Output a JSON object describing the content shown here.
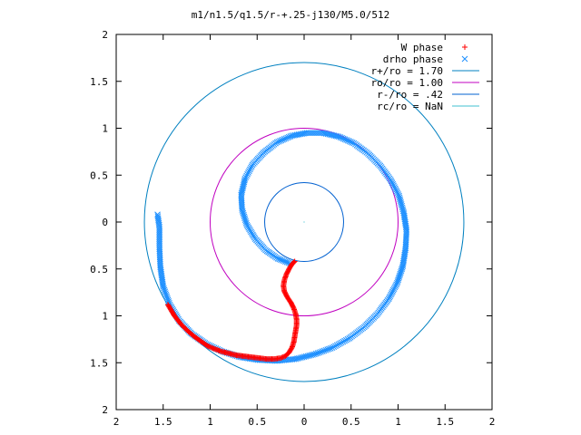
{
  "chart_data": {
    "type": "scatter",
    "title": "m1/n1.5/q1.5/r-+.25-j130/M5.0/512",
    "xlim": [
      -2,
      2
    ],
    "ylim": [
      -2,
      2
    ],
    "x_tick_labels": [
      "2",
      "1.5",
      "1",
      "0.5",
      "0",
      "0.5",
      "1",
      "1.5",
      "2"
    ],
    "y_tick_labels": [
      "2",
      "1.5",
      "1",
      "0.5",
      "0",
      "0.5",
      "1",
      "1.5",
      "2"
    ],
    "grid": false,
    "legend_position": "top-right",
    "series": [
      {
        "name": "W phase",
        "kind": "points",
        "marker": "+",
        "color": "#ff0000",
        "points": [
          [
            -0.1,
            -0.42
          ],
          [
            -0.13,
            -0.45
          ],
          [
            -0.16,
            -0.5
          ],
          [
            -0.19,
            -0.56
          ],
          [
            -0.21,
            -0.62
          ],
          [
            -0.22,
            -0.68
          ],
          [
            -0.21,
            -0.74
          ],
          [
            -0.18,
            -0.8
          ],
          [
            -0.14,
            -0.86
          ],
          [
            -0.11,
            -0.92
          ],
          [
            -0.09,
            -0.98
          ],
          [
            -0.08,
            -1.04
          ],
          [
            -0.08,
            -1.1
          ],
          [
            -0.09,
            -1.16
          ],
          [
            -0.1,
            -1.22
          ],
          [
            -0.11,
            -1.28
          ],
          [
            -0.13,
            -1.34
          ],
          [
            -0.16,
            -1.39
          ],
          [
            -0.2,
            -1.43
          ],
          [
            -0.25,
            -1.45
          ],
          [
            -0.32,
            -1.46
          ],
          [
            -0.4,
            -1.46
          ],
          [
            -0.48,
            -1.45
          ],
          [
            -0.56,
            -1.44
          ],
          [
            -0.64,
            -1.43
          ],
          [
            -0.72,
            -1.42
          ],
          [
            -0.8,
            -1.4
          ],
          [
            -0.88,
            -1.38
          ],
          [
            -0.96,
            -1.35
          ],
          [
            -1.03,
            -1.32
          ],
          [
            -1.1,
            -1.27
          ],
          [
            -1.17,
            -1.22
          ],
          [
            -1.24,
            -1.16
          ],
          [
            -1.31,
            -1.09
          ],
          [
            -1.38,
            -1.0
          ],
          [
            -1.45,
            -0.88
          ]
        ]
      },
      {
        "name": "drho phase",
        "kind": "points",
        "marker": "x",
        "color": "#1e90ff",
        "points": [
          [
            -0.15,
            -0.44
          ],
          [
            -0.28,
            -0.39
          ],
          [
            -0.41,
            -0.3
          ],
          [
            -0.52,
            -0.18
          ],
          [
            -0.61,
            -0.03
          ],
          [
            -0.66,
            0.13
          ],
          [
            -0.67,
            0.29
          ],
          [
            -0.63,
            0.46
          ],
          [
            -0.55,
            0.61
          ],
          [
            -0.43,
            0.74
          ],
          [
            -0.29,
            0.85
          ],
          [
            -0.13,
            0.92
          ],
          [
            0.03,
            0.95
          ],
          [
            0.2,
            0.95
          ],
          [
            0.37,
            0.91
          ],
          [
            0.53,
            0.84
          ],
          [
            0.68,
            0.73
          ],
          [
            0.81,
            0.6
          ],
          [
            0.92,
            0.45
          ],
          [
            1.01,
            0.28
          ],
          [
            1.06,
            0.1
          ],
          [
            1.09,
            -0.09
          ],
          [
            1.08,
            -0.28
          ],
          [
            1.05,
            -0.47
          ],
          [
            0.99,
            -0.65
          ],
          [
            0.9,
            -0.82
          ],
          [
            0.78,
            -0.98
          ],
          [
            0.64,
            -1.12
          ],
          [
            0.48,
            -1.24
          ],
          [
            0.3,
            -1.34
          ],
          [
            0.11,
            -1.41
          ],
          [
            -0.09,
            -1.46
          ],
          [
            -0.29,
            -1.48
          ],
          [
            -0.49,
            -1.47
          ],
          [
            -0.68,
            -1.44
          ],
          [
            -0.87,
            -1.38
          ],
          [
            -1.04,
            -1.3
          ],
          [
            -1.2,
            -1.19
          ],
          [
            -1.33,
            -1.05
          ],
          [
            -1.43,
            -0.88
          ],
          [
            -1.5,
            -0.69
          ],
          [
            -1.53,
            -0.48
          ],
          [
            -1.54,
            -0.27
          ],
          [
            -1.54,
            -0.05
          ],
          [
            -1.56,
            0.08
          ]
        ]
      },
      {
        "name": "r+/ro = 1.70",
        "kind": "circle",
        "radius": 1.7,
        "color": "#0080c0"
      },
      {
        "name": "ro/ro = 1.00",
        "kind": "circle",
        "radius": 1.0,
        "color": "#c000c0"
      },
      {
        "name": "r-/ro = .42",
        "kind": "circle",
        "radius": 0.42,
        "color": "#0060d0"
      },
      {
        "name": "rc/ro = NaN",
        "kind": "circle",
        "radius": null,
        "color": "#40c0d0"
      }
    ]
  }
}
